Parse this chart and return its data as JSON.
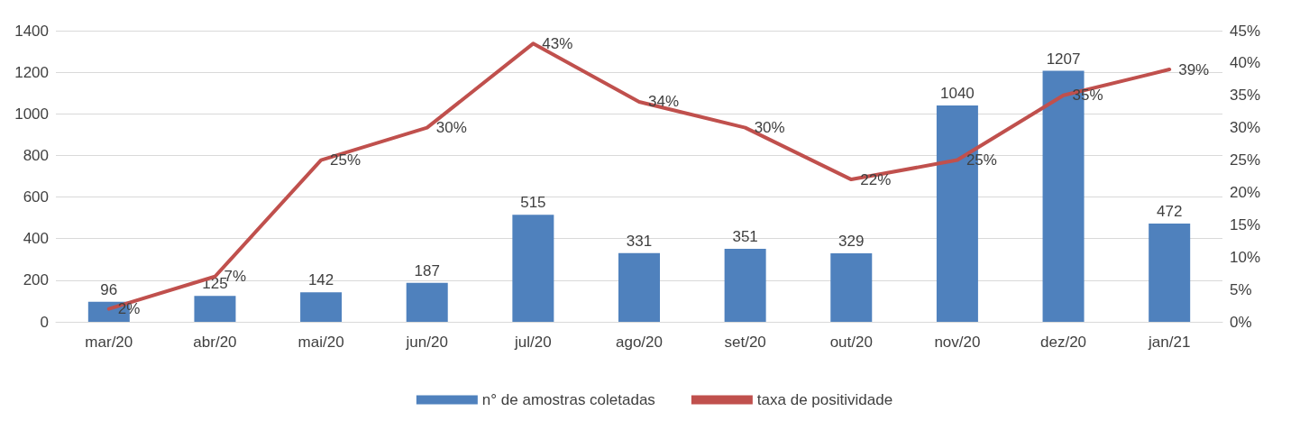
{
  "chart_data": {
    "type": "bar",
    "categories": [
      "mar/20",
      "abr/20",
      "mai/20",
      "jun/20",
      "jul/20",
      "ago/20",
      "set/20",
      "out/20",
      "nov/20",
      "dez/20",
      "jan/21"
    ],
    "series": [
      {
        "name": "n° de amostras coletadas",
        "color": "#4f81bd",
        "values": [
          96,
          125,
          142,
          187,
          515,
          331,
          351,
          329,
          1040,
          1207,
          472
        ],
        "value_labels": [
          "96",
          "125",
          "142",
          "187",
          "515",
          "331",
          "351",
          "329",
          "1040",
          "1207",
          "472"
        ]
      },
      {
        "name": "taxa de positividade",
        "type": "line",
        "axis": "y2",
        "color": "#c0504d",
        "values": [
          2,
          7,
          25,
          30,
          43,
          34,
          30,
          22,
          25,
          35,
          39
        ],
        "value_labels": [
          "2%",
          "7%",
          "25%",
          "30%",
          "43%",
          "34%",
          "30%",
          "22%",
          "25%",
          "35%",
          "39%"
        ]
      }
    ],
    "ylim": [
      0,
      1400
    ],
    "yticks": [
      0,
      200,
      400,
      600,
      800,
      1000,
      1200,
      1400
    ],
    "y2lim": [
      0,
      45
    ],
    "y2ticks": [
      {
        "value": 0,
        "label": "0%"
      },
      {
        "value": 5,
        "label": "5%"
      },
      {
        "value": 10,
        "label": "10%"
      },
      {
        "value": 15,
        "label": "15%"
      },
      {
        "value": 20,
        "label": "20%"
      },
      {
        "value": 25,
        "label": "25%"
      },
      {
        "value": 30,
        "label": "30%"
      },
      {
        "value": 35,
        "label": "35%"
      },
      {
        "value": 40,
        "label": "40%"
      },
      {
        "value": 45,
        "label": "45%"
      }
    ],
    "grid": "y",
    "legend": "bottom",
    "marker": "none",
    "line_style": "solid"
  }
}
